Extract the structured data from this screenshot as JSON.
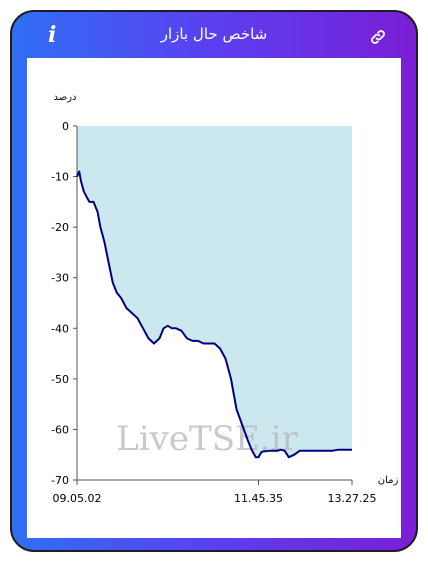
{
  "header": {
    "title": "شاخص حال بازار",
    "info_icon": "i",
    "link_icon": "link-icon"
  },
  "watermark": "LiveTSE.ir",
  "chart_data": {
    "type": "area",
    "ylabel": "درصد",
    "xlabel": "زمان",
    "ylim": [
      -70,
      0
    ],
    "yticks": [
      0,
      -10,
      -20,
      -30,
      -40,
      -50,
      -60,
      -70
    ],
    "xticks": [
      "09.05.02",
      "11.45.35",
      "13.27.25"
    ],
    "xtick_positions": [
      0,
      0.66,
      1
    ],
    "line_color": "#000080",
    "fill_color": "#cce8ef",
    "series": [
      {
        "x": [
          0,
          0.008,
          0.015,
          0.025,
          0.035,
          0.045,
          0.06,
          0.075,
          0.085,
          0.1,
          0.115,
          0.13,
          0.145,
          0.16,
          0.18,
          0.2,
          0.22,
          0.24,
          0.26,
          0.28,
          0.3,
          0.315,
          0.33,
          0.345,
          0.36,
          0.38,
          0.4,
          0.42,
          0.44,
          0.46,
          0.48,
          0.5,
          0.52,
          0.54,
          0.56,
          0.58,
          0.6,
          0.62,
          0.635,
          0.65,
          0.66,
          0.67,
          0.68,
          0.69,
          0.7,
          0.71,
          0.72,
          0.73,
          0.74,
          0.755,
          0.77,
          0.79,
          0.81,
          0.83,
          0.85,
          0.87,
          0.89,
          0.91,
          0.93,
          0.95,
          0.97,
          0.99,
          1.0
        ],
        "y": [
          -10,
          -9,
          -11,
          -13,
          -14,
          -15,
          -15,
          -17,
          -20,
          -23,
          -27,
          -31,
          -33,
          -34,
          -36,
          -37,
          -38,
          -40,
          -42,
          -43,
          -42,
          -40,
          -39.5,
          -40,
          -40,
          -40.5,
          -42,
          -42.5,
          -42.5,
          -43,
          -43,
          -43,
          -44,
          -46,
          -50,
          -56,
          -59,
          -62,
          -64,
          -65.5,
          -65.5,
          -64.5,
          -64.3,
          -64.3,
          -64.2,
          -64.2,
          -64.2,
          -64.2,
          -64,
          -64.2,
          -65.5,
          -65,
          -64.2,
          -64.2,
          -64.2,
          -64.2,
          -64.2,
          -64.2,
          -64.2,
          -64,
          -64,
          -64,
          -64
        ]
      }
    ]
  }
}
